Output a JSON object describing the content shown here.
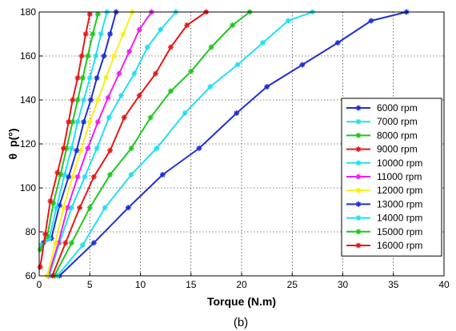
{
  "figure": {
    "caption": "(b)"
  },
  "chart_data": {
    "type": "line",
    "title": "",
    "xlabel": "Torque (N.m)",
    "ylabel": "θ_p(°)",
    "ylabel_main": "θ",
    "ylabel_sub": "p",
    "ylabel_unit": "(°)",
    "xlim": [
      0,
      40
    ],
    "ylim": [
      60,
      180
    ],
    "x_ticks": [
      0,
      5,
      10,
      15,
      20,
      25,
      30,
      35,
      40
    ],
    "y_ticks": [
      60,
      80,
      100,
      120,
      140,
      160,
      180
    ],
    "grid": true,
    "legend_position": "right",
    "marker": "star",
    "series": [
      {
        "name": "6000 rpm",
        "color": "#1f2fd6",
        "points": [
          [
            2.0,
            60
          ],
          [
            5.4,
            75
          ],
          [
            8.8,
            91
          ],
          [
            12.2,
            106
          ],
          [
            15.8,
            118
          ],
          [
            19.5,
            134
          ],
          [
            22.5,
            146
          ],
          [
            26.0,
            156
          ],
          [
            29.5,
            166
          ],
          [
            32.8,
            176
          ],
          [
            36.3,
            180
          ]
        ]
      },
      {
        "name": "7000 rpm",
        "color": "#22e0f0",
        "points": [
          [
            1.8,
            60
          ],
          [
            4.3,
            74
          ],
          [
            6.5,
            91
          ],
          [
            9.1,
            106
          ],
          [
            11.6,
            118
          ],
          [
            14.4,
            134
          ],
          [
            16.9,
            146
          ],
          [
            19.6,
            156
          ],
          [
            22.1,
            166
          ],
          [
            24.6,
            176
          ],
          [
            27.0,
            180
          ]
        ]
      },
      {
        "name": "8000 rpm",
        "color": "#1fc81f",
        "points": [
          [
            1.5,
            60
          ],
          [
            3.2,
            75
          ],
          [
            5.0,
            91
          ],
          [
            7.0,
            106
          ],
          [
            9.1,
            118
          ],
          [
            11.0,
            132
          ],
          [
            13.0,
            144
          ],
          [
            15.0,
            153
          ],
          [
            17.0,
            164
          ],
          [
            19.1,
            174
          ],
          [
            20.8,
            180
          ]
        ]
      },
      {
        "name": "9000 rpm",
        "color": "#e61919",
        "points": [
          [
            1.3,
            60
          ],
          [
            2.6,
            75
          ],
          [
            4.0,
            91
          ],
          [
            5.4,
            105
          ],
          [
            7.0,
            117
          ],
          [
            8.4,
            132
          ],
          [
            9.9,
            142
          ],
          [
            11.5,
            152
          ],
          [
            13.0,
            164
          ],
          [
            14.6,
            174
          ],
          [
            16.5,
            180
          ]
        ]
      },
      {
        "name": "10000 rpm",
        "color": "#22e0f0",
        "points": [
          [
            1.0,
            60
          ],
          [
            2.0,
            75
          ],
          [
            3.2,
            91
          ],
          [
            4.5,
            105
          ],
          [
            5.7,
            118
          ],
          [
            6.9,
            132
          ],
          [
            8.1,
            142
          ],
          [
            9.4,
            152
          ],
          [
            10.7,
            164
          ],
          [
            12.0,
            172
          ],
          [
            13.5,
            180
          ]
        ]
      },
      {
        "name": "11000 rpm",
        "color": "#f01ef0",
        "points": [
          [
            0.9,
            60
          ],
          [
            1.9,
            75
          ],
          [
            2.8,
            91
          ],
          [
            3.8,
            105
          ],
          [
            4.8,
            118
          ],
          [
            5.8,
            130
          ],
          [
            6.8,
            141
          ],
          [
            7.9,
            152
          ],
          [
            8.9,
            162
          ],
          [
            9.9,
            172
          ],
          [
            11.1,
            180
          ]
        ]
      },
      {
        "name": "12000 rpm",
        "color": "#f5f019",
        "points": [
          [
            0.8,
            60
          ],
          [
            1.6,
            75
          ],
          [
            2.4,
            91
          ],
          [
            3.3,
            105
          ],
          [
            4.1,
            117
          ],
          [
            5.0,
            130
          ],
          [
            5.8,
            140
          ],
          [
            6.6,
            150
          ],
          [
            7.4,
            160
          ],
          [
            8.3,
            170
          ],
          [
            9.2,
            180
          ]
        ]
      },
      {
        "name": "13000 rpm",
        "color": "#1f2fd6",
        "points": [
          [
            0.4,
            75
          ],
          [
            1.2,
            77
          ],
          [
            2.0,
            92
          ],
          [
            2.9,
            105
          ],
          [
            3.7,
            117
          ],
          [
            4.4,
            130
          ],
          [
            5.1,
            140
          ],
          [
            5.7,
            150
          ],
          [
            6.4,
            160
          ],
          [
            7.0,
            170
          ],
          [
            7.6,
            180
          ]
        ]
      },
      {
        "name": "14000 rpm",
        "color": "#22e0f0",
        "points": [
          [
            0.2,
            74
          ],
          [
            1.0,
            77
          ],
          [
            1.7,
            91
          ],
          [
            2.5,
            106
          ],
          [
            3.2,
            118
          ],
          [
            3.8,
            130
          ],
          [
            4.4,
            140
          ],
          [
            5.0,
            150
          ],
          [
            5.6,
            160
          ],
          [
            6.1,
            170
          ],
          [
            6.7,
            180
          ]
        ]
      },
      {
        "name": "15000 rpm",
        "color": "#1fc81f",
        "points": [
          [
            0.1,
            72
          ],
          [
            0.8,
            78
          ],
          [
            1.4,
            93
          ],
          [
            2.1,
            106
          ],
          [
            2.7,
            118
          ],
          [
            3.3,
            130
          ],
          [
            3.8,
            140
          ],
          [
            4.3,
            150
          ],
          [
            4.8,
            160
          ],
          [
            5.3,
            170
          ],
          [
            5.8,
            179
          ]
        ]
      },
      {
        "name": "16000 rpm",
        "color": "#e61919",
        "points": [
          [
            0.1,
            64
          ],
          [
            0.6,
            79
          ],
          [
            1.1,
            94
          ],
          [
            1.8,
            107
          ],
          [
            2.4,
            118
          ],
          [
            2.9,
            130
          ],
          [
            3.3,
            140
          ],
          [
            3.8,
            150
          ],
          [
            4.2,
            160
          ],
          [
            4.6,
            170
          ],
          [
            5.0,
            179
          ]
        ]
      }
    ]
  }
}
